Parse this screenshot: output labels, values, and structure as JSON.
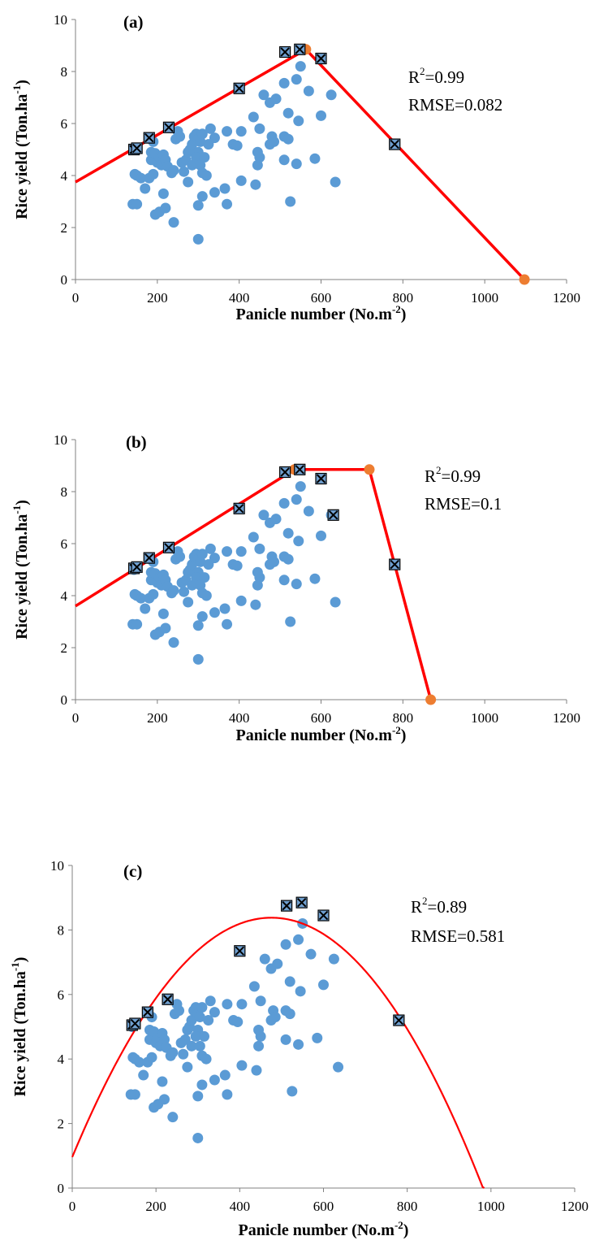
{
  "chart_data": [
    {
      "type": "scatter",
      "panel_label": "(a)",
      "xlabel": "Panicle number  (No.m",
      "xlabel_sup": "-2",
      "xlabel_end": ")",
      "ylabel": "Rice yield  (Ton.ha",
      "ylabel_sup": "-1",
      "ylabel_end": ")",
      "xlim": [
        0,
        1200
      ],
      "ylim": [
        0,
        10
      ],
      "xticks": [
        "0",
        "200",
        "400",
        "600",
        "800",
        "1000",
        "1200"
      ],
      "yticks": [
        "0",
        "2",
        "4",
        "6",
        "8",
        "10"
      ],
      "r2_label": "R",
      "r2_sup": "2",
      "r2_value": "=0.99",
      "rmse_label": "RMSE=0.082",
      "fit": {
        "kind": "segmented",
        "points": [
          [
            0,
            3.75
          ],
          [
            563,
            8.85
          ],
          [
            1097,
            0
          ]
        ]
      },
      "breakpoints": [
        [
          563,
          8.85
        ],
        [
          1097,
          0
        ]
      ],
      "boundary_points": [
        [
          143,
          5.0
        ],
        [
          150,
          5.05
        ],
        [
          180,
          5.45
        ],
        [
          228,
          5.85
        ],
        [
          400,
          7.35
        ],
        [
          512,
          8.75
        ],
        [
          548,
          8.85
        ],
        [
          600,
          8.5
        ],
        [
          780,
          5.2
        ]
      ]
    },
    {
      "type": "scatter",
      "panel_label": "(b)",
      "xlabel": "Panicle number  (No.m",
      "xlabel_sup": "-2",
      "xlabel_end": ")",
      "ylabel": "Rice yield  (Ton.ha",
      "ylabel_sup": "-1",
      "ylabel_end": ")",
      "xlim": [
        0,
        1200
      ],
      "ylim": [
        0,
        10
      ],
      "xticks": [
        "0",
        "200",
        "400",
        "600",
        "800",
        "1000",
        "1200"
      ],
      "yticks": [
        "0",
        "2",
        "4",
        "6",
        "8",
        "10"
      ],
      "r2_label": "R",
      "r2_sup": "2",
      "r2_value": "=0.99",
      "rmse_label": "RMSE=0.1",
      "fit": {
        "kind": "segmented",
        "points": [
          [
            0,
            3.6
          ],
          [
            535,
            8.85
          ],
          [
            718,
            8.85
          ],
          [
            868,
            0
          ]
        ]
      },
      "breakpoints": [
        [
          535,
          8.85
        ],
        [
          718,
          8.85
        ],
        [
          868,
          0
        ]
      ],
      "boundary_points": [
        [
          143,
          5.05
        ],
        [
          150,
          5.1
        ],
        [
          180,
          5.45
        ],
        [
          228,
          5.85
        ],
        [
          400,
          7.35
        ],
        [
          512,
          8.75
        ],
        [
          548,
          8.85
        ],
        [
          600,
          8.5
        ],
        [
          630,
          7.1
        ],
        [
          780,
          5.2
        ]
      ]
    },
    {
      "type": "scatter",
      "panel_label": "(c)",
      "xlabel": "Panicle number  (No.m",
      "xlabel_sup": "-2",
      "xlabel_end": ")",
      "ylabel": "Rice yield (Ton.ha",
      "ylabel_sup": "-1",
      "ylabel_end": ")",
      "xlim": [
        0,
        1200
      ],
      "ylim": [
        0,
        10
      ],
      "xticks": [
        "0",
        "200",
        "400",
        "600",
        "800",
        "1000",
        "1200"
      ],
      "yticks": [
        "0",
        "2",
        "4",
        "6",
        "8",
        "10"
      ],
      "r2_label": "R",
      "r2_sup": "2",
      "r2_value": "=0.89",
      "rmse_label": "RMSE=0.581",
      "fit": {
        "kind": "quadratic",
        "a": -3.28e-05,
        "b": 0.0312,
        "c": 0.96,
        "x_range": [
          0,
          987
        ]
      },
      "breakpoints": [],
      "boundary_points": [
        [
          143,
          5.05
        ],
        [
          150,
          5.1
        ],
        [
          180,
          5.45
        ],
        [
          228,
          5.85
        ],
        [
          400,
          7.35
        ],
        [
          512,
          8.75
        ],
        [
          548,
          8.85
        ],
        [
          600,
          8.45
        ],
        [
          780,
          5.2
        ]
      ]
    }
  ],
  "scatter_points": [
    [
      143,
      5.0
    ],
    [
      150,
      5.05
    ],
    [
      145,
      4.05
    ],
    [
      150,
      4.0
    ],
    [
      160,
      3.9
    ],
    [
      140,
      2.9
    ],
    [
      150,
      2.9
    ],
    [
      170,
      3.5
    ],
    [
      180,
      3.9
    ],
    [
      190,
      4.05
    ],
    [
      185,
      4.6
    ],
    [
      185,
      4.9
    ],
    [
      195,
      4.85
    ],
    [
      190,
      5.3
    ],
    [
      200,
      4.5
    ],
    [
      205,
      4.7
    ],
    [
      215,
      4.8
    ],
    [
      210,
      4.4
    ],
    [
      220,
      4.6
    ],
    [
      225,
      4.35
    ],
    [
      215,
      3.3
    ],
    [
      195,
      2.5
    ],
    [
      205,
      2.6
    ],
    [
      220,
      2.75
    ],
    [
      240,
      2.2
    ],
    [
      235,
      4.1
    ],
    [
      240,
      4.2
    ],
    [
      245,
      5.4
    ],
    [
      255,
      5.5
    ],
    [
      250,
      5.7
    ],
    [
      260,
      4.5
    ],
    [
      265,
      4.15
    ],
    [
      270,
      4.6
    ],
    [
      275,
      4.9
    ],
    [
      280,
      5.0
    ],
    [
      285,
      5.2
    ],
    [
      290,
      5.5
    ],
    [
      295,
      5.6
    ],
    [
      300,
      5.4
    ],
    [
      305,
      5.3
    ],
    [
      310,
      5.6
    ],
    [
      300,
      4.9
    ],
    [
      285,
      4.4
    ],
    [
      275,
      3.75
    ],
    [
      295,
      4.7
    ],
    [
      305,
      4.4
    ],
    [
      310,
      4.1
    ],
    [
      315,
      4.7
    ],
    [
      320,
      4.0
    ],
    [
      325,
      5.2
    ],
    [
      330,
      5.8
    ],
    [
      340,
      5.45
    ],
    [
      310,
      3.2
    ],
    [
      300,
      2.85
    ],
    [
      300,
      1.55
    ],
    [
      340,
      3.35
    ],
    [
      365,
      3.5
    ],
    [
      370,
      2.9
    ],
    [
      370,
      5.7
    ],
    [
      385,
      5.2
    ],
    [
      395,
      5.15
    ],
    [
      405,
      5.7
    ],
    [
      405,
      3.8
    ],
    [
      435,
      6.25
    ],
    [
      440,
      3.65
    ],
    [
      445,
      4.4
    ],
    [
      450,
      4.7
    ],
    [
      445,
      4.9
    ],
    [
      450,
      5.8
    ],
    [
      460,
      7.1
    ],
    [
      475,
      6.8
    ],
    [
      490,
      6.95
    ],
    [
      480,
      5.5
    ],
    [
      475,
      5.2
    ],
    [
      485,
      5.3
    ],
    [
      510,
      7.55
    ],
    [
      520,
      6.4
    ],
    [
      510,
      5.5
    ],
    [
      520,
      5.4
    ],
    [
      525,
      3.0
    ],
    [
      510,
      4.6
    ],
    [
      540,
      7.7
    ],
    [
      545,
      6.1
    ],
    [
      550,
      8.2
    ],
    [
      540,
      4.45
    ],
    [
      570,
      7.25
    ],
    [
      585,
      4.65
    ],
    [
      600,
      6.3
    ],
    [
      625,
      7.1
    ],
    [
      635,
      3.75
    ]
  ],
  "colors": {
    "scatter": "#5b9bd5",
    "fit_line": "#ff0000",
    "breakpoint": "#ed7d31",
    "marker_fill": "#6f9fcf",
    "axis": "#808080"
  }
}
